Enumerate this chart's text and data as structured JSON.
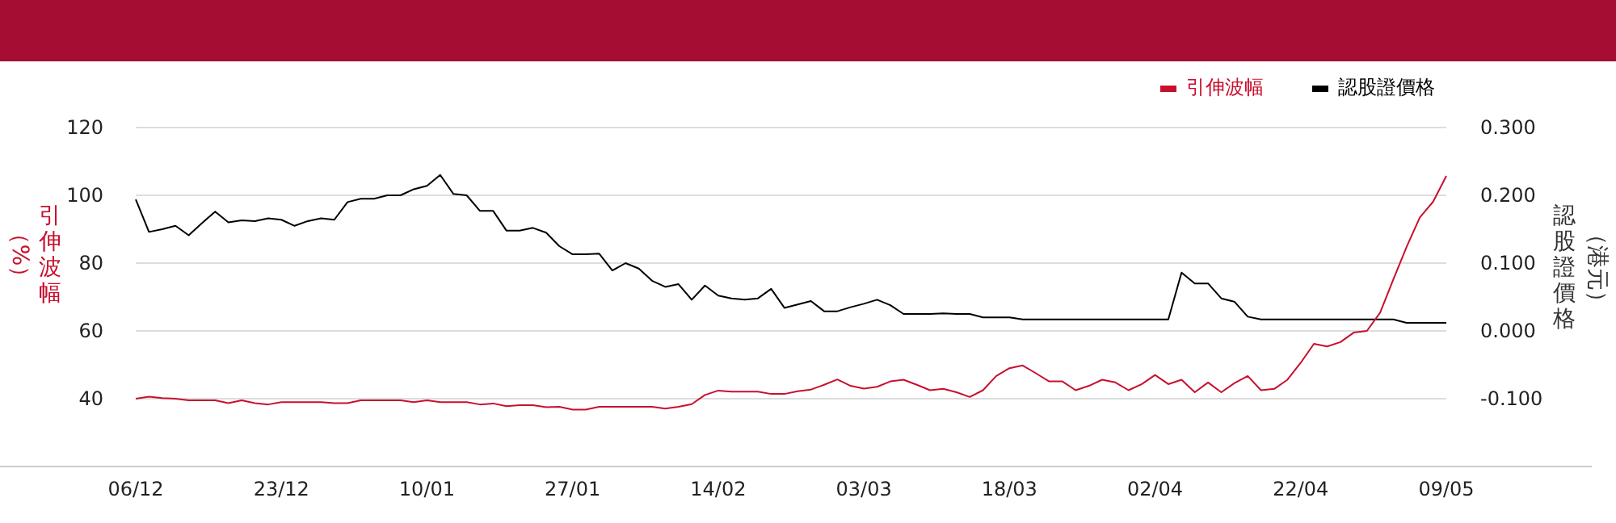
{
  "chart_data": {
    "type": "line",
    "ylabel": "引伸波幅（%）",
    "y2label": "認股證價格（港元）",
    "categories": [
      "06/12",
      null,
      null,
      null,
      null,
      null,
      null,
      null,
      null,
      null,
      null,
      "23/12",
      null,
      null,
      null,
      null,
      null,
      null,
      null,
      null,
      null,
      null,
      "10/01",
      null,
      null,
      null,
      null,
      null,
      null,
      null,
      null,
      null,
      null,
      "27/01",
      null,
      null,
      null,
      null,
      null,
      null,
      null,
      null,
      null,
      null,
      "14/02",
      null,
      null,
      null,
      null,
      null,
      null,
      null,
      null,
      null,
      null,
      "03/03",
      null,
      null,
      null,
      null,
      null,
      null,
      null,
      null,
      null,
      null,
      "18/03",
      null,
      null,
      null,
      null,
      null,
      null,
      null,
      null,
      null,
      null,
      "02/04",
      null,
      null,
      null,
      null,
      null,
      null,
      null,
      null,
      null,
      null,
      "22/04",
      null,
      null,
      null,
      null,
      null,
      null,
      null,
      null,
      null,
      null,
      "09/05"
    ],
    "series": [
      {
        "name": "引伸波幅",
        "color": "#c8102e",
        "values": [
          40.0,
          40.6,
          40.2,
          40.0,
          39.5,
          39.5,
          39.5,
          38.7,
          39.5,
          38.7,
          38.3,
          39.0,
          39.0,
          39.0,
          39.0,
          38.7,
          38.7,
          39.5,
          39.5,
          39.5,
          39.5,
          39.0,
          39.5,
          39.0,
          39.0,
          39.0,
          38.3,
          38.6,
          37.8,
          38.1,
          38.1,
          37.5,
          37.6,
          36.8,
          36.8,
          37.6,
          37.6,
          37.6,
          37.6,
          37.6,
          37.1,
          37.6,
          38.4,
          41.1,
          42.4,
          42.1,
          42.1,
          42.1,
          41.4,
          41.4,
          42.2,
          42.7,
          44.1,
          45.7,
          43.8,
          43.0,
          43.5,
          45.1,
          45.6,
          44.1,
          42.5,
          42.9,
          41.9,
          40.5,
          42.5,
          46.7,
          49.0,
          49.8,
          47.5,
          45.1,
          45.1,
          42.5,
          43.8,
          45.6,
          44.8,
          42.5,
          44.3,
          47.0,
          44.3,
          45.6,
          41.9,
          44.8,
          41.9,
          44.6,
          46.7,
          42.5,
          42.9,
          45.6,
          50.6,
          56.2,
          55.4,
          56.7,
          59.5,
          60.0,
          65.4,
          75.2,
          84.8,
          93.5,
          98.1,
          105.7
        ]
      },
      {
        "name": "認股證價格",
        "color": "#000000",
        "axis": "y2",
        "values": [
          0.194,
          0.146,
          0.15,
          0.155,
          0.141,
          0.159,
          0.176,
          0.16,
          0.163,
          0.162,
          0.166,
          0.164,
          0.155,
          0.162,
          0.166,
          0.164,
          0.19,
          0.195,
          0.195,
          0.2,
          0.2,
          0.209,
          0.214,
          0.23,
          0.202,
          0.2,
          0.177,
          0.177,
          0.148,
          0.148,
          0.152,
          0.145,
          0.125,
          0.113,
          0.113,
          0.114,
          0.089,
          0.1,
          0.092,
          0.074,
          0.065,
          0.069,
          0.046,
          0.067,
          0.052,
          0.048,
          0.046,
          0.048,
          0.062,
          0.034,
          0.039,
          0.044,
          0.029,
          0.029,
          0.035,
          0.04,
          0.046,
          0.038,
          0.025,
          0.025,
          0.025,
          0.026,
          0.025,
          0.025,
          0.02,
          0.02,
          0.02,
          0.017,
          0.017,
          0.017,
          0.017,
          0.017,
          0.017,
          0.017,
          0.017,
          0.017,
          0.017,
          0.017,
          0.017,
          0.086,
          0.07,
          0.07,
          0.048,
          0.043,
          0.021,
          0.017,
          0.017,
          0.017,
          0.017,
          0.017,
          0.017,
          0.017,
          0.017,
          0.017,
          0.017,
          0.017,
          0.012,
          0.012,
          0.012,
          0.012
        ]
      }
    ],
    "ylim": [
      20,
      120
    ],
    "yticks": [
      40,
      60,
      80,
      100,
      120
    ],
    "y2lim": [
      -0.2,
      0.3
    ],
    "y2ticks": [
      {
        "value": 0.3,
        "label": "0.300"
      },
      {
        "value": 0.2,
        "label": "0.200"
      },
      {
        "value": 0.1,
        "label": "0.100"
      },
      {
        "value": 0,
        "label": "0.000"
      },
      {
        "value": -0.1,
        "label": "-0.100"
      }
    ],
    "grid": "y",
    "legend": "top right",
    "marker": "none",
    "line_style": "solid"
  }
}
